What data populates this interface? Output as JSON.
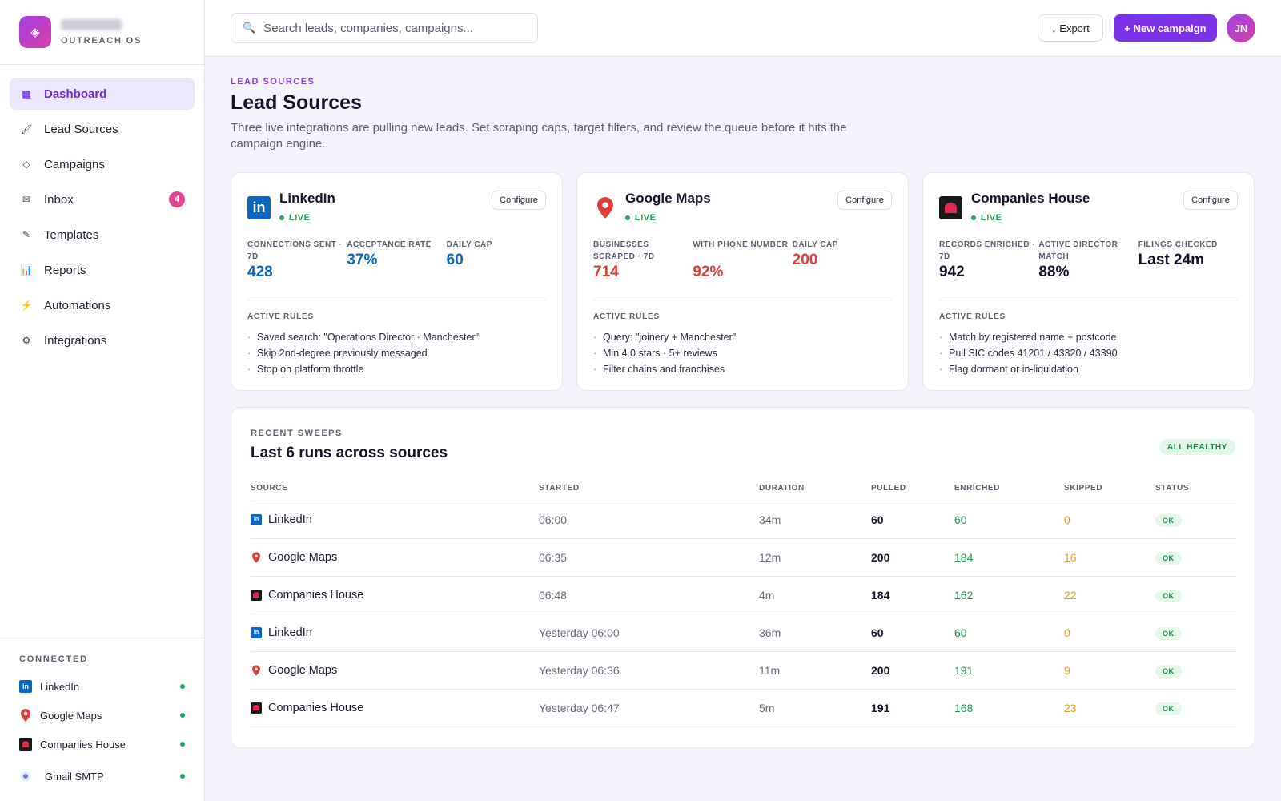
{
  "brand": {
    "subtitle": "OUTREACH OS",
    "logo_glyph": "◈"
  },
  "nav": {
    "items": [
      {
        "label": "Dashboard",
        "icon": "▦",
        "active": true
      },
      {
        "label": "Lead Sources",
        "icon": "🖌"
      },
      {
        "label": "Campaigns",
        "icon": "◇"
      },
      {
        "label": "Inbox",
        "icon": "✉",
        "badge": "4"
      },
      {
        "label": "Templates",
        "icon": "✎"
      },
      {
        "label": "Reports",
        "icon": "📊"
      },
      {
        "label": "Automations",
        "icon": "⚡"
      },
      {
        "label": "Integrations",
        "icon": "⚙"
      }
    ]
  },
  "connected": {
    "title": "CONNECTED",
    "items": [
      {
        "label": "LinkedIn"
      },
      {
        "label": "Google Maps"
      },
      {
        "label": "Companies House"
      },
      {
        "label": "Gmail SMTP"
      }
    ]
  },
  "topbar": {
    "search_placeholder": "Search leads, companies, campaigns...",
    "export_label": "↓ Export",
    "new_campaign_label": "+ New campaign",
    "avatar_initials": "JN"
  },
  "page": {
    "eyebrow": "LEAD SOURCES",
    "title": "Lead Sources",
    "description": "Three live integrations are pulling new leads. Set scraping caps, target filters, and review the queue before it hits the campaign engine."
  },
  "sources": [
    {
      "name": "LinkedIn",
      "status": "LIVE",
      "configure_label": "Configure",
      "accent": "#0a66c2",
      "metrics": [
        {
          "label": "CONNECTIONS SENT · 7D",
          "value": "428"
        },
        {
          "label": "ACCEPTANCE RATE",
          "value": "37%"
        },
        {
          "label": "DAILY CAP",
          "value": "60"
        }
      ],
      "rules_title": "ACTIVE RULES",
      "rules": [
        "Saved search: \"Operations Director · Manchester\"",
        "Skip 2nd-degree previously messaged",
        "Stop on platform throttle"
      ]
    },
    {
      "name": "Google Maps",
      "status": "LIVE",
      "configure_label": "Configure",
      "accent": "#dd3f3a",
      "metrics": [
        {
          "label": "BUSINESSES SCRAPED · 7D",
          "value": "714"
        },
        {
          "label": "WITH PHONE NUMBER",
          "value": "92%"
        },
        {
          "label": "DAILY CAP",
          "value": "200"
        }
      ],
      "rules_title": "ACTIVE RULES",
      "rules": [
        "Query: \"joinery + Manchester\"",
        "Min 4.0 stars · 5+ reviews",
        "Filter chains and franchises"
      ]
    },
    {
      "name": "Companies House",
      "status": "LIVE",
      "configure_label": "Configure",
      "accent": "#14142a",
      "metrics": [
        {
          "label": "RECORDS ENRICHED · 7D",
          "value": "942"
        },
        {
          "label": "ACTIVE DIRECTOR MATCH",
          "value": "88%"
        },
        {
          "label": "FILINGS CHECKED",
          "value": "Last 24m"
        }
      ],
      "rules_title": "ACTIVE RULES",
      "rules": [
        "Match by registered name + postcode",
        "Pull SIC codes 41201 / 43320 / 43390",
        "Flag dormant or in-liquidation"
      ]
    }
  ],
  "sweeps": {
    "eyebrow": "RECENT SWEEPS",
    "title": "Last 6 runs across sources",
    "health_badge": "ALL HEALTHY",
    "columns": [
      "SOURCE",
      "STARTED",
      "DURATION",
      "PULLED",
      "ENRICHED",
      "SKIPPED",
      "STATUS"
    ],
    "rows": [
      {
        "source": "LinkedIn",
        "icon": "linkedin",
        "started": "06:00",
        "duration": "34m",
        "pulled": "60",
        "enriched": "60",
        "skipped": "0",
        "status": "OK"
      },
      {
        "source": "Google Maps",
        "icon": "map-pin",
        "started": "06:35",
        "duration": "12m",
        "pulled": "200",
        "enriched": "184",
        "skipped": "16",
        "status": "OK"
      },
      {
        "source": "Companies House",
        "icon": "companies-house",
        "started": "06:48",
        "duration": "4m",
        "pulled": "184",
        "enriched": "162",
        "skipped": "22",
        "status": "OK"
      },
      {
        "source": "LinkedIn",
        "icon": "linkedin",
        "started": "Yesterday 06:00",
        "duration": "36m",
        "pulled": "60",
        "enriched": "60",
        "skipped": "0",
        "status": "OK"
      },
      {
        "source": "Google Maps",
        "icon": "map-pin",
        "started": "Yesterday 06:36",
        "duration": "11m",
        "pulled": "200",
        "enriched": "191",
        "skipped": "9",
        "status": "OK"
      },
      {
        "source": "Companies House",
        "icon": "companies-house",
        "started": "Yesterday 06:47",
        "duration": "5m",
        "pulled": "191",
        "enriched": "168",
        "skipped": "23",
        "status": "OK"
      }
    ]
  }
}
